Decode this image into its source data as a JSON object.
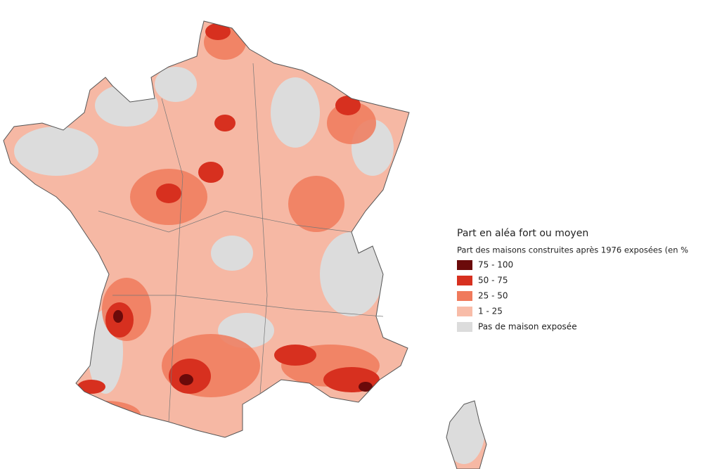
{
  "legend": {
    "title": "Part en aléa fort ou moyen",
    "subtitle": "Part des maisons construites après 1976 exposées (en %",
    "items": [
      {
        "label": "75 - 100",
        "color": "#6b0a0a"
      },
      {
        "label": "50 - 75",
        "color": "#d7301f"
      },
      {
        "label": "25 - 50",
        "color": "#f07a5c"
      },
      {
        "label": "1 - 25",
        "color": "#f8bca8"
      },
      {
        "label": "Pas de maison exposée",
        "color": "#dcdcdc"
      }
    ]
  }
}
